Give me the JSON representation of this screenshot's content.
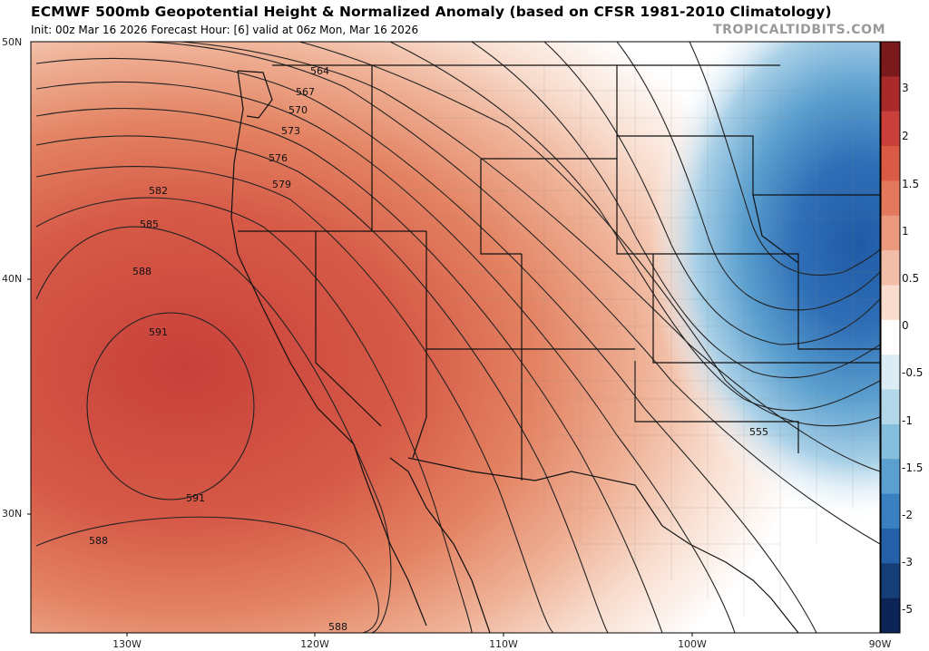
{
  "header": {
    "title": "ECMWF 500mb Geopotential Height & Normalized Anomaly (based on CFSR 1981-2010 Climatology)",
    "subtitle": "Init: 00z Mar 16 2026   Forecast Hour: [6]   valid at 06z Mon, Mar 16 2026",
    "brand": "TROPICALTIDBITS.COM"
  },
  "axes": {
    "lat_labels": [
      "50N",
      "40N",
      "30N"
    ],
    "lon_labels": [
      "130W",
      "120W",
      "110W",
      "100W",
      "90W"
    ]
  },
  "colorbar": {
    "labels": [
      "3",
      "2",
      "1.5",
      "1",
      "0.5",
      "0",
      "-0.5",
      "-1",
      "-1.5",
      "-2",
      "-3",
      "-5"
    ],
    "colors": [
      "#7a1a1c",
      "#a82a2a",
      "#c9403a",
      "#d95a45",
      "#e2785c",
      "#eb9a7e",
      "#f3bea7",
      "#f8dccd",
      "#ffffff",
      "#dcecf5",
      "#b5d7ea",
      "#86bedd",
      "#5a9fcf",
      "#3a7fc0",
      "#2460a8",
      "#163f7a",
      "#0d2556"
    ]
  },
  "contours": {
    "labels": [
      "564",
      "567",
      "570",
      "573",
      "576",
      "579",
      "582",
      "585",
      "588",
      "591",
      "591",
      "588",
      "588",
      "555"
    ]
  }
}
